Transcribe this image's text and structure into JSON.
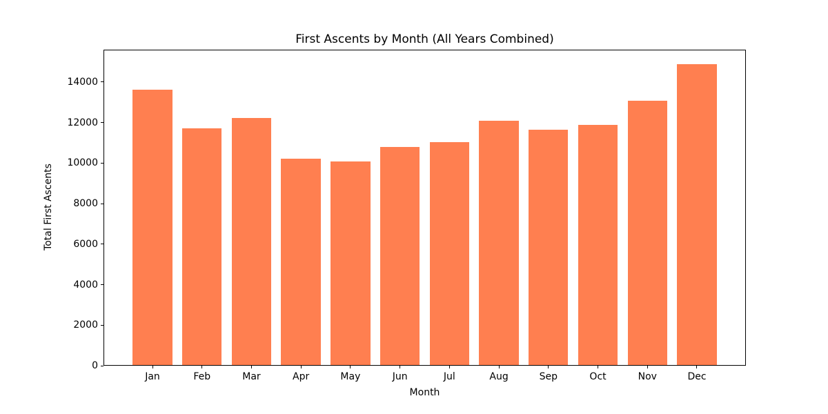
{
  "chart_data": {
    "type": "bar",
    "title": "First Ascents by Month (All Years Combined)",
    "xlabel": "Month",
    "ylabel": "Total First Ascents",
    "categories": [
      "Jan",
      "Feb",
      "Mar",
      "Apr",
      "May",
      "Jun",
      "Jul",
      "Aug",
      "Sep",
      "Oct",
      "Nov",
      "Dec"
    ],
    "values": [
      13600,
      11700,
      12200,
      10200,
      10050,
      10750,
      11000,
      12050,
      11600,
      11850,
      13050,
      14850
    ],
    "yticks": [
      0,
      2000,
      4000,
      6000,
      8000,
      10000,
      12000,
      14000
    ],
    "ylim": [
      0,
      15600
    ],
    "x_range": [
      -0.99,
      11.99
    ],
    "bar_width": 0.8,
    "bar_color": "#FF7F50",
    "axis_color": "#000000",
    "background_color": "#ffffff",
    "grid": false,
    "legend": null
  }
}
